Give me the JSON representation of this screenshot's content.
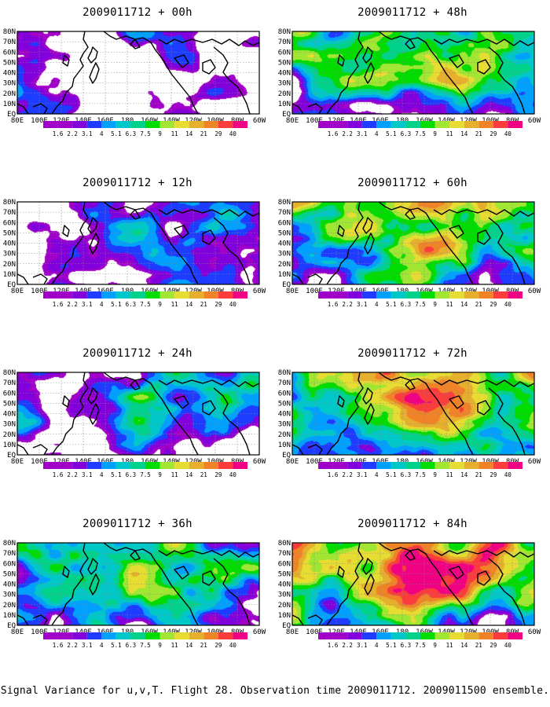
{
  "panels": [
    {
      "title": "2009011712 + 00h",
      "intensity": 0.12,
      "seed": 1
    },
    {
      "title": "2009011712 + 48h",
      "intensity": 0.62,
      "seed": 2
    },
    {
      "title": "2009011712 + 12h",
      "intensity": 0.22,
      "seed": 3
    },
    {
      "title": "2009011712 + 60h",
      "intensity": 0.72,
      "seed": 4
    },
    {
      "title": "2009011712 + 24h",
      "intensity": 0.38,
      "seed": 5
    },
    {
      "title": "2009011712 + 72h",
      "intensity": 0.85,
      "seed": 6
    },
    {
      "title": "2009011712 + 36h",
      "intensity": 0.5,
      "seed": 7
    },
    {
      "title": "2009011712 + 84h",
      "intensity": 0.95,
      "seed": 8
    }
  ],
  "lat_labels": [
    "80N",
    "70N",
    "60N",
    "50N",
    "40N",
    "30N",
    "20N",
    "10N",
    "EQ"
  ],
  "lon_labels": [
    "80E",
    "100E",
    "120E",
    "140E",
    "160E",
    "180",
    "160W",
    "140W",
    "120W",
    "100W",
    "80W",
    "60W"
  ],
  "colorbar": {
    "labels": [
      "1.6",
      "2.2",
      "3.1",
      "4",
      "5.1",
      "6.3",
      "7.5",
      "9",
      "11",
      "14",
      "21",
      "29",
      "40"
    ],
    "colors": [
      "#a000c8",
      "#8200dc",
      "#1e3cff",
      "#00a0ff",
      "#00c8c8",
      "#00d28c",
      "#00dc00",
      "#a0e632",
      "#e6dc32",
      "#e6af2d",
      "#f08228",
      "#fa3c3c",
      "#f00082"
    ]
  },
  "caption": "Signal Variance for u,v,T. Flight 28. Observation time 2009011712. 2009011500 ensemble."
}
